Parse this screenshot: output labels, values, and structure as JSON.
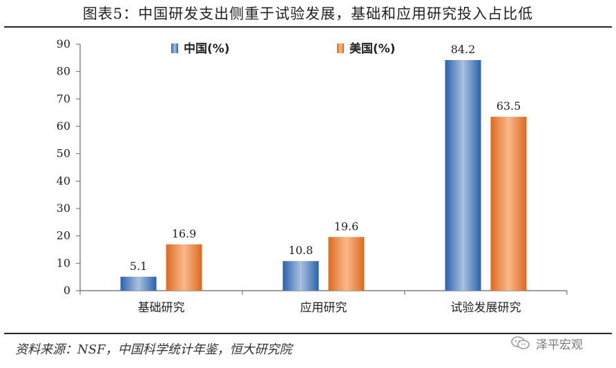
{
  "title": "图表5：中国研发支出侧重于试验发展，基础和应用研究投入占比低",
  "source": "资料来源：NSF，中国科学统计年鉴，恒大研究院",
  "watermark": "泽平宏观",
  "chart_data": {
    "type": "bar",
    "categories": [
      "基础研究",
      "应用研究",
      "试验发展研究"
    ],
    "series": [
      {
        "name": "中国(%)",
        "values": [
          5.1,
          10.8,
          84.2
        ],
        "color": "#3d78c1"
      },
      {
        "name": "美国(%)",
        "values": [
          16.9,
          19.6,
          63.5
        ],
        "color": "#e8782e"
      }
    ],
    "ylim": [
      0,
      90
    ],
    "yticks": [
      0,
      10,
      20,
      30,
      40,
      50,
      60,
      70,
      80,
      90
    ],
    "data_labels": [
      "5.1",
      "10.8",
      "84.2",
      "16.9",
      "19.6",
      "63.5"
    ],
    "legend": "top",
    "grid": false
  }
}
